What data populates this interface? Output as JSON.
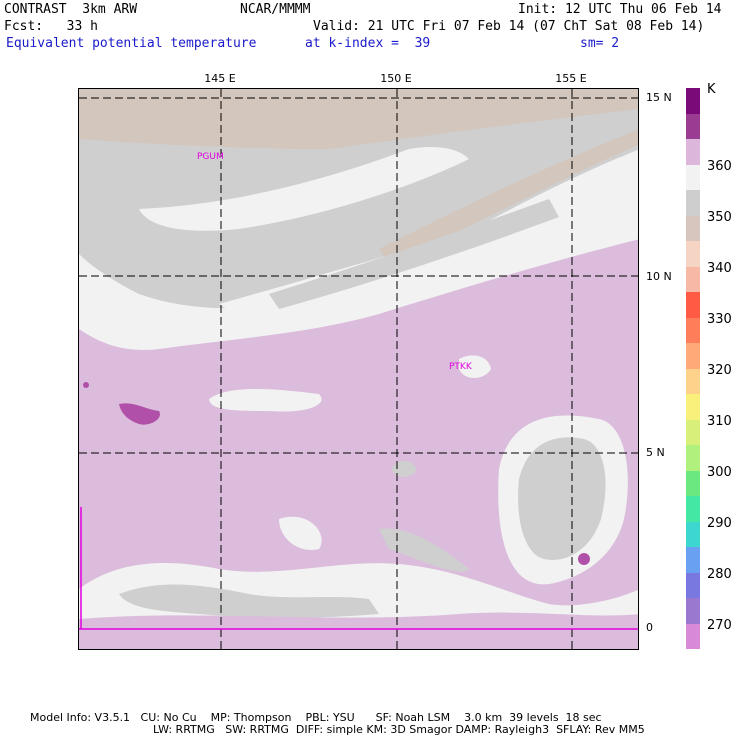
{
  "header": {
    "model": "CONTRAST  3km ARW",
    "org": "NCAR/MMMM",
    "init": "Init: 12 UTC Thu 06 Feb 14",
    "fcst": "Fcst:   33 h",
    "valid": "Valid: 21 UTC Fri 07 Feb 14 (07 ChT Sat 08 Feb 14)",
    "field": "Equivalent potential temperature",
    "level": "at k-index =  39",
    "smooth": "sm= 2"
  },
  "map": {
    "lon_labels": [
      "145 E",
      "150 E",
      "155 E"
    ],
    "lat_labels": [
      "15 N",
      "10 N",
      "5 N",
      "0"
    ],
    "places": [
      "PGUM",
      "PTKK"
    ],
    "colors": {
      "pink": "#dcbcdc",
      "gray": "#cfcfcf",
      "white": "#f2f2f2",
      "tan": "#d3c6bd",
      "purple": "#b050a8"
    }
  },
  "legend": {
    "unit": "K",
    "labels": [
      "360",
      "350",
      "340",
      "330",
      "320",
      "310",
      "300",
      "290",
      "280",
      "270"
    ],
    "colors": [
      "#7a0a78",
      "#9a3c92",
      "#ddb6dc",
      "#f2f2f2",
      "#cecece",
      "#d6c6bd",
      "#f6d4c4",
      "#f8b8a6",
      "#ff5a44",
      "#ff7e5a",
      "#ffa878",
      "#ffd28c",
      "#f8f07a",
      "#d8f07a",
      "#b0f07c",
      "#6ce880",
      "#44e8a4",
      "#3cd8d0",
      "#6aa0f0",
      "#7878e0",
      "#9a78d0",
      "#d88ad8"
    ]
  },
  "footer": {
    "line1": "Model Info: V3.5.1   CU: No Cu    MP: Thompson    PBL: YSU      SF: Noah LSM    3.0 km  39 levels  18 sec",
    "line2": "LW: RRTMG   SW: RRTMG  DIFF: simple KM: 3D Smagor DAMP: Rayleigh3  SFLAY: Rev MM5"
  }
}
